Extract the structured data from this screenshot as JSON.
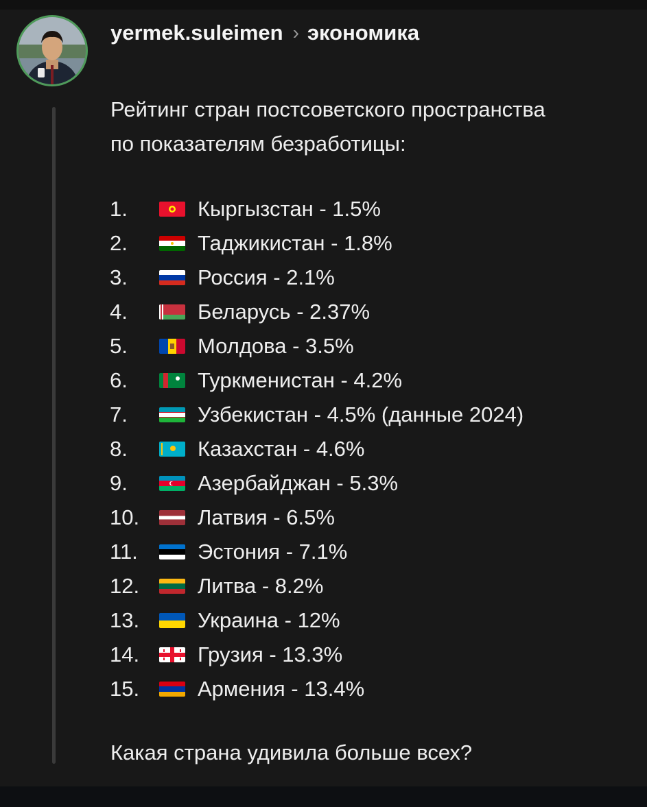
{
  "post": {
    "username": "yermek.suleimen",
    "separator": "›",
    "topic": "экономика",
    "intro_lines": [
      "Рейтинг стран постсоветского пространства",
      "по показателям безработицы:"
    ],
    "items": [
      {
        "num": "1.",
        "flag": "kyrgyzstan-flag-icon",
        "text": "Кыргызстан - 1.5%"
      },
      {
        "num": "2.",
        "flag": "tajikistan-flag-icon",
        "text": "Таджикистан - 1.8%"
      },
      {
        "num": "3.",
        "flag": "russia-flag-icon",
        "text": "Россия - 2.1%"
      },
      {
        "num": "4.",
        "flag": "belarus-flag-icon",
        "text": "Беларусь - 2.37%"
      },
      {
        "num": "5.",
        "flag": "moldova-flag-icon",
        "text": "Молдова - 3.5%"
      },
      {
        "num": "6.",
        "flag": "turkmenistan-flag-icon",
        "text": "Туркменистан - 4.2%"
      },
      {
        "num": "7.",
        "flag": "uzbekistan-flag-icon",
        "text": "Узбекистан - 4.5% (данные 2024)"
      },
      {
        "num": "8.",
        "flag": "kazakhstan-flag-icon",
        "text": "Казахстан - 4.6%"
      },
      {
        "num": "9.",
        "flag": "azerbaijan-flag-icon",
        "text": "Азербайджан - 5.3%"
      },
      {
        "num": "10.",
        "flag": "latvia-flag-icon",
        "text": "Латвия - 6.5%"
      },
      {
        "num": "11.",
        "flag": "estonia-flag-icon",
        "text": "Эстония - 7.1%"
      },
      {
        "num": "12.",
        "flag": "lithuania-flag-icon",
        "text": "Литва - 8.2%"
      },
      {
        "num": "13.",
        "flag": "ukraine-flag-icon",
        "text": "Украина - 12%"
      },
      {
        "num": "14.",
        "flag": "georgia-flag-icon",
        "text": "Грузия - 13.3%"
      },
      {
        "num": "15.",
        "flag": "armenia-flag-icon",
        "text": "Армения - 13.4%"
      }
    ],
    "question": "Какая страна удивила больше всех?"
  },
  "colors": {
    "background": "#181818",
    "text": "#eeeeee",
    "avatar_ring": "#4f9b5a",
    "thread_line": "#3a3a3a"
  }
}
